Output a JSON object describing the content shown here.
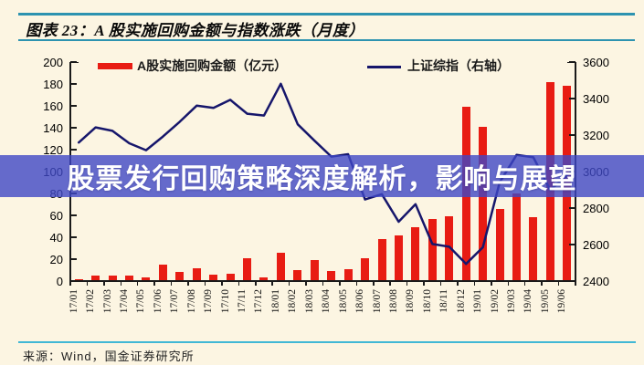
{
  "title": "图表 23：A 股实施回购金额与指数涨跌（月度）",
  "legend": {
    "bar_label": "A股实施回购金额（亿元）",
    "line_label": "上证综指（右轴）"
  },
  "overlay": {
    "text": "股票发行回购策略深度解析，影响与展望",
    "bg_color": "#3f47c6",
    "text_color": "#ffffff"
  },
  "source": "来源：Wind，国金证券研究所",
  "colors": {
    "background": "#fcf5e2",
    "bar": "#e81c13",
    "line": "#16166b",
    "rule_teal": "#2d93b0",
    "rule_footer": "#41b8d5"
  },
  "chart_data": {
    "type": "bar",
    "subtype": "bar+line combo",
    "categories": [
      "17/01",
      "17/02",
      "17/03",
      "17/04",
      "17/05",
      "17/06",
      "17/07",
      "17/08",
      "17/09",
      "17/10",
      "17/11",
      "17/12",
      "18/01",
      "18/02",
      "18/03",
      "18/04",
      "18/05",
      "18/06",
      "18/07",
      "18/08",
      "18/09",
      "18/10",
      "18/11",
      "18/12",
      "19/01",
      "19/02",
      "19/03",
      "19/04",
      "19/05",
      "19/06"
    ],
    "series": [
      {
        "name": "A股实施回购金额（亿元）",
        "type": "bar",
        "axis": "left",
        "color": "#e81c13",
        "values": [
          2,
          5,
          5,
          5,
          3,
          15,
          8,
          12,
          6,
          7,
          21,
          3,
          26,
          10,
          19,
          9,
          11,
          21,
          38,
          42,
          49,
          57,
          59,
          159,
          141,
          66,
          80,
          58,
          182,
          178
        ]
      },
      {
        "name": "上证综指（右轴）",
        "type": "line",
        "axis": "right",
        "color": "#16166b",
        "values": [
          3159,
          3242,
          3223,
          3155,
          3117,
          3192,
          3273,
          3361,
          3349,
          3393,
          3317,
          3307,
          3481,
          3259,
          3169,
          3082,
          3095,
          2847,
          2876,
          2725,
          2821,
          2603,
          2588,
          2494,
          2585,
          2941,
          3091,
          3078,
          2899,
          2979
        ]
      }
    ],
    "left_axis": {
      "min": 0,
      "max": 200,
      "step": 20,
      "ticks": [
        200,
        180,
        160,
        140,
        120,
        100,
        80,
        60,
        40,
        20,
        0
      ]
    },
    "right_axis": {
      "min": 2400,
      "max": 3600,
      "step": 200,
      "ticks": [
        3600,
        3400,
        3200,
        3000,
        2800,
        2600,
        2400
      ]
    },
    "legend_position": "top",
    "grid": false,
    "title": "图表 23：A 股实施回购金额与指数涨跌（月度）"
  }
}
